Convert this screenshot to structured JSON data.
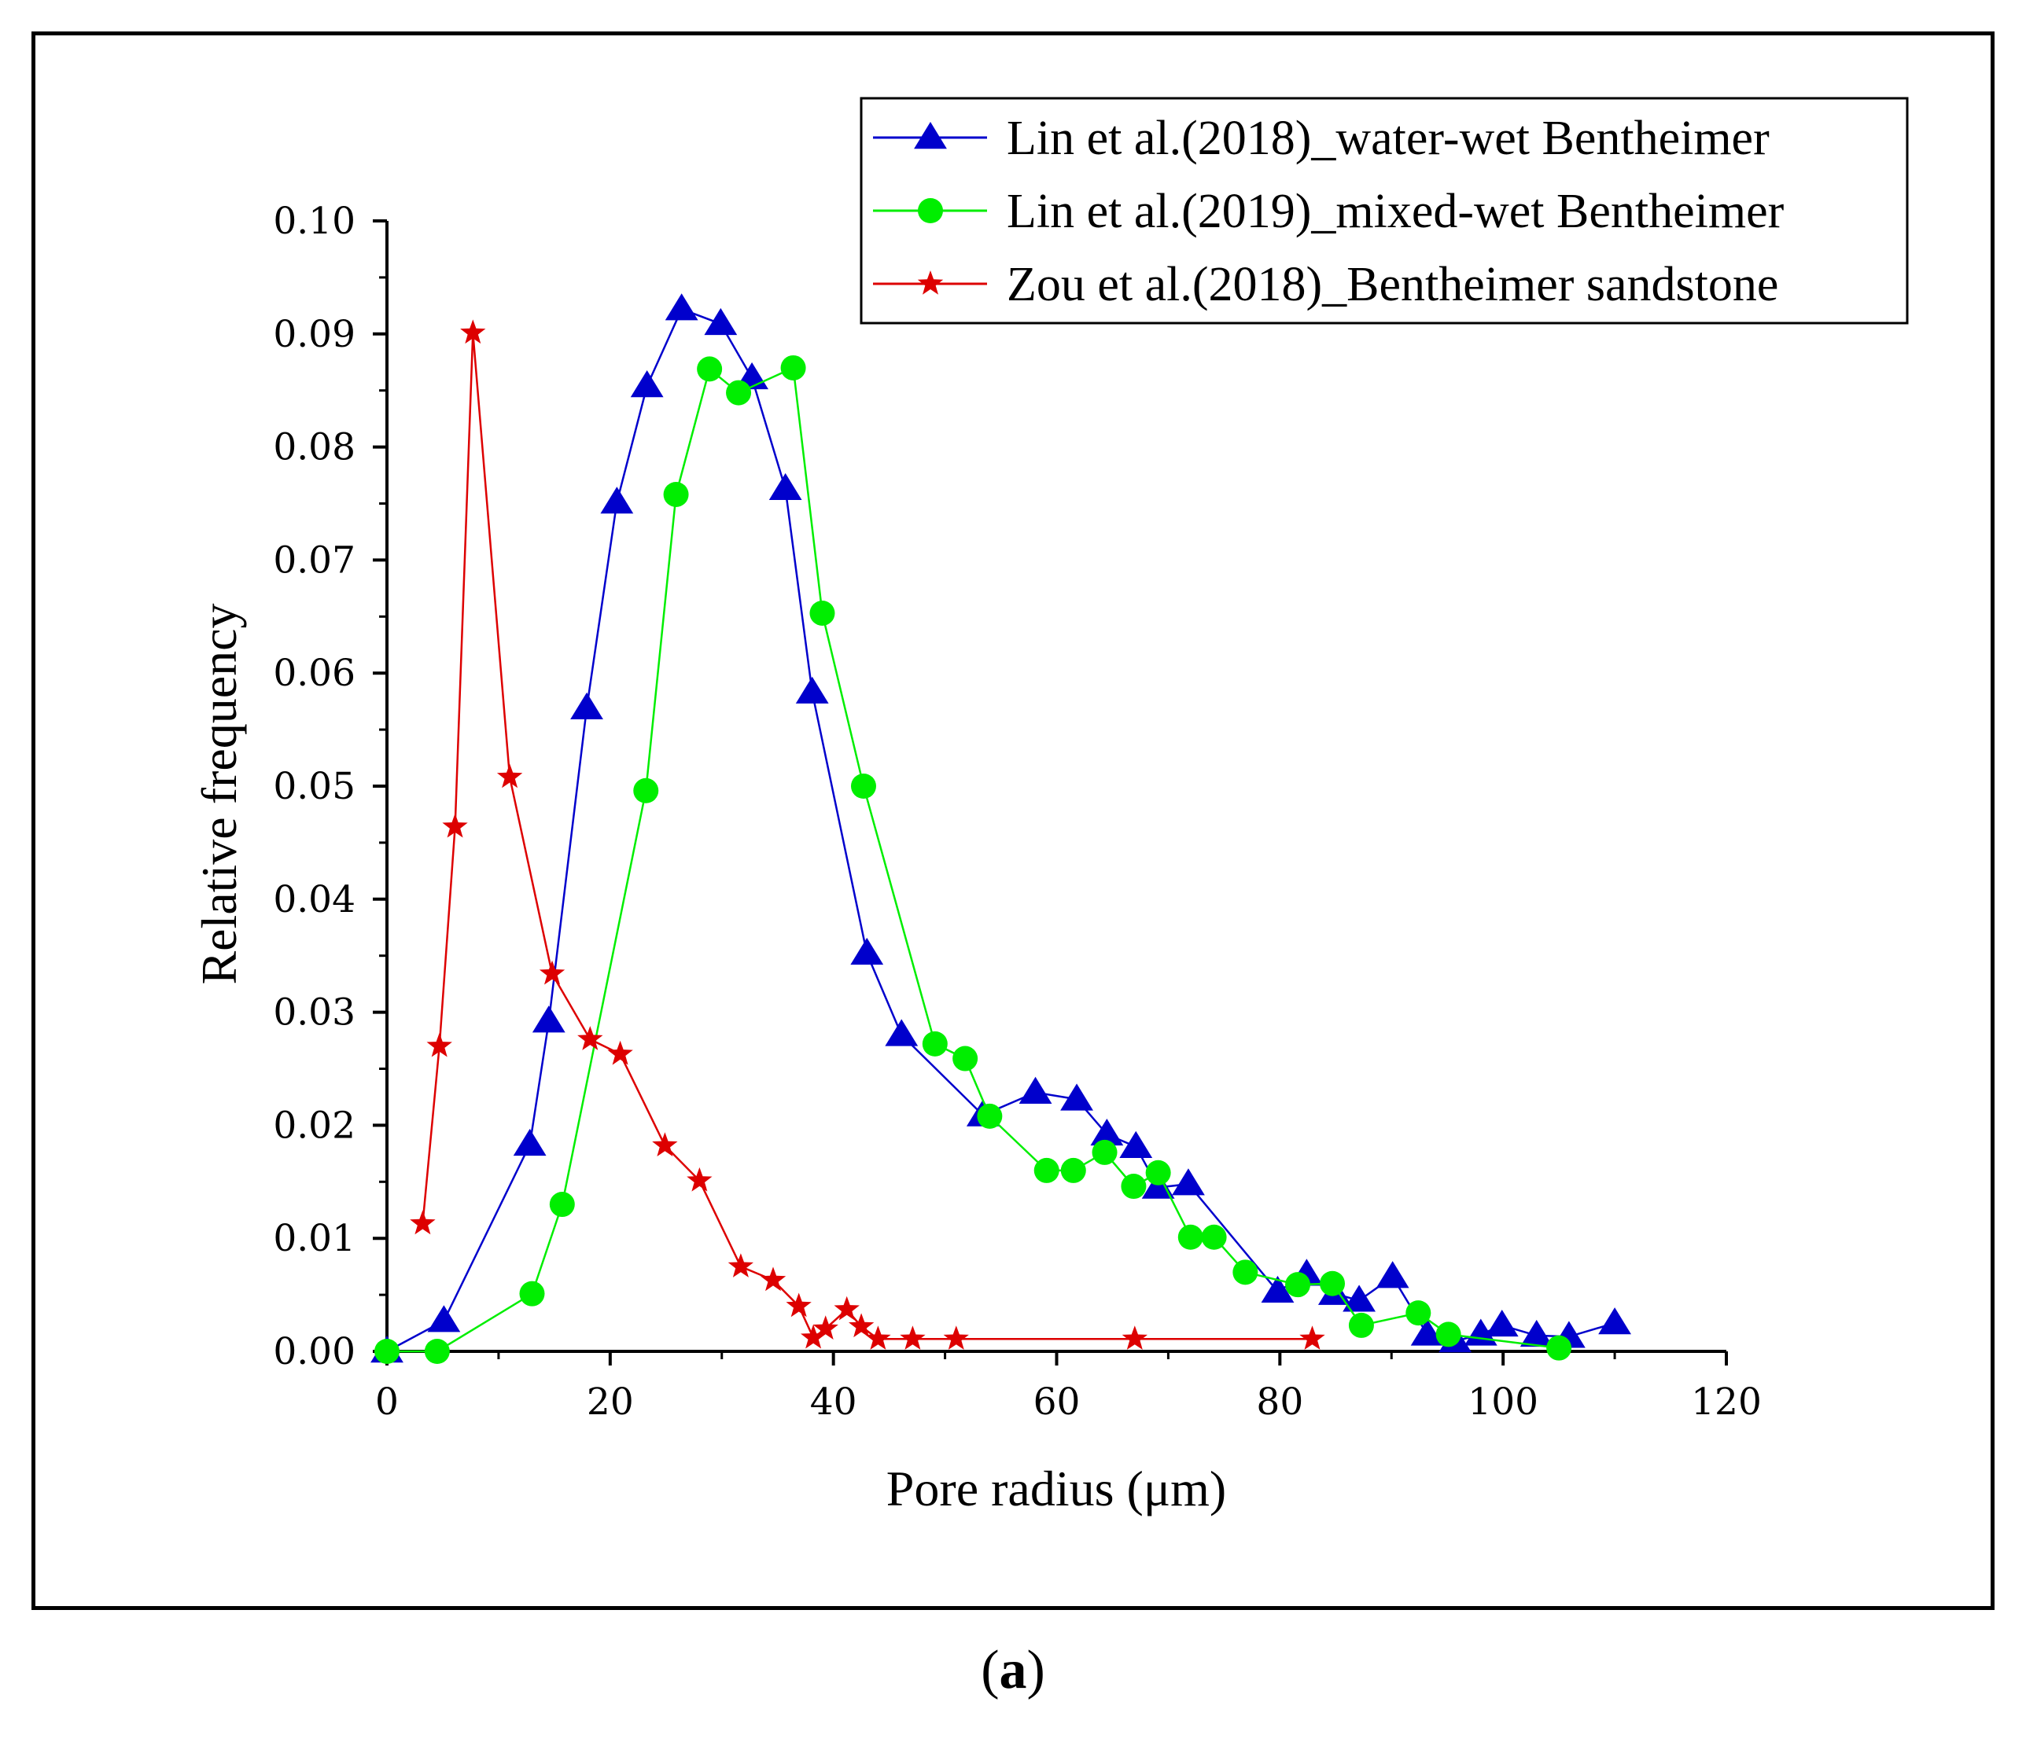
{
  "chart_data": {
    "type": "line",
    "title": "",
    "xlabel": "Pore radius (μm)",
    "ylabel": "Relative frequency",
    "xlim": [
      0,
      120
    ],
    "ylim": [
      0,
      0.1
    ],
    "x_ticks": [
      0,
      20,
      40,
      60,
      80,
      100,
      120
    ],
    "x_tick_labels": [
      "0",
      "20",
      "40",
      "60",
      "80",
      "100",
      "120"
    ],
    "y_ticks": [
      0,
      0.01,
      0.02,
      0.03,
      0.04,
      0.05,
      0.06,
      0.07,
      0.08,
      0.09,
      0.1
    ],
    "y_tick_labels": [
      "0.00",
      "0.01",
      "0.02",
      "0.03",
      "0.04",
      "0.05",
      "0.06",
      "0.07",
      "0.08",
      "0.09",
      "0.10"
    ],
    "grid": false,
    "legend_position": "top-right",
    "series": [
      {
        "name": "Lin et al.(2018)_water-wet Bentheimer",
        "color": "#0000cc",
        "marker": "triangle",
        "points": [
          [
            0,
            0.0
          ],
          [
            5.1,
            0.0027
          ],
          [
            12.8,
            0.0183
          ],
          [
            14.5,
            0.0292
          ],
          [
            17.9,
            0.0569
          ],
          [
            20.6,
            0.0751
          ],
          [
            23.3,
            0.0854
          ],
          [
            26.4,
            0.0922
          ],
          [
            29.9,
            0.0909
          ],
          [
            32.7,
            0.0861
          ],
          [
            35.7,
            0.0763
          ],
          [
            38.1,
            0.0583
          ],
          [
            43.0,
            0.0352
          ],
          [
            46.1,
            0.028
          ],
          [
            53.4,
            0.0209
          ],
          [
            58.1,
            0.0229
          ],
          [
            61.8,
            0.0223
          ],
          [
            64.5,
            0.0192
          ],
          [
            67.1,
            0.0181
          ],
          [
            69.1,
            0.0145
          ],
          [
            71.8,
            0.0148
          ],
          [
            79.8,
            0.0053
          ],
          [
            82.4,
            0.0068
          ],
          [
            84.9,
            0.0051
          ],
          [
            87.1,
            0.0045
          ],
          [
            90.1,
            0.0066
          ],
          [
            93.2,
            0.0015
          ],
          [
            95.7,
            0.0009
          ],
          [
            98.0,
            0.0015
          ],
          [
            99.9,
            0.0023
          ],
          [
            103.0,
            0.0014
          ],
          [
            105.9,
            0.0013
          ],
          [
            110.0,
            0.0025
          ]
        ]
      },
      {
        "name": "Lin et al.(2019)_mixed-wet Bentheimer",
        "color": "#00ee00",
        "marker": "circle",
        "points": [
          [
            0,
            0.0
          ],
          [
            4.5,
            0.0
          ],
          [
            13.0,
            0.0051
          ],
          [
            15.7,
            0.013
          ],
          [
            23.2,
            0.0496
          ],
          [
            25.9,
            0.0758
          ],
          [
            28.9,
            0.0869
          ],
          [
            31.5,
            0.0848
          ],
          [
            36.4,
            0.087
          ],
          [
            39.0,
            0.0653
          ],
          [
            42.7,
            0.05
          ],
          [
            49.1,
            0.0272
          ],
          [
            51.8,
            0.0259
          ],
          [
            54.0,
            0.0208
          ],
          [
            59.1,
            0.016
          ],
          [
            61.5,
            0.016
          ],
          [
            64.3,
            0.0176
          ],
          [
            66.9,
            0.0146
          ],
          [
            69.1,
            0.0158
          ],
          [
            72.0,
            0.0101
          ],
          [
            74.1,
            0.0101
          ],
          [
            76.9,
            0.007
          ],
          [
            81.6,
            0.0059
          ],
          [
            84.7,
            0.006
          ],
          [
            87.3,
            0.0023
          ],
          [
            92.4,
            0.0034
          ],
          [
            95.1,
            0.0015
          ],
          [
            105.0,
            0.0003
          ]
        ]
      },
      {
        "name": "Zou et al.(2018)_Bentheimer sandstone",
        "color": "#dd0000",
        "marker": "star",
        "points": [
          [
            3.2,
            0.0113
          ],
          [
            4.7,
            0.027
          ],
          [
            6.1,
            0.0464
          ],
          [
            7.7,
            0.0901
          ],
          [
            11.0,
            0.0508
          ],
          [
            14.8,
            0.0334
          ],
          [
            18.2,
            0.0276
          ],
          [
            20.9,
            0.0263
          ],
          [
            24.9,
            0.0182
          ],
          [
            28.0,
            0.0151
          ],
          [
            31.7,
            0.0075
          ],
          [
            34.6,
            0.0063
          ],
          [
            36.9,
            0.004
          ],
          [
            38.2,
            0.0012
          ],
          [
            39.3,
            0.002
          ],
          [
            41.2,
            0.0037
          ],
          [
            42.5,
            0.0022
          ],
          [
            44.0,
            0.0011
          ],
          [
            47.1,
            0.0011
          ],
          [
            51.0,
            0.0011
          ],
          [
            67.0,
            0.0011
          ],
          [
            82.9,
            0.0011
          ]
        ]
      }
    ]
  },
  "panel_label": "a"
}
